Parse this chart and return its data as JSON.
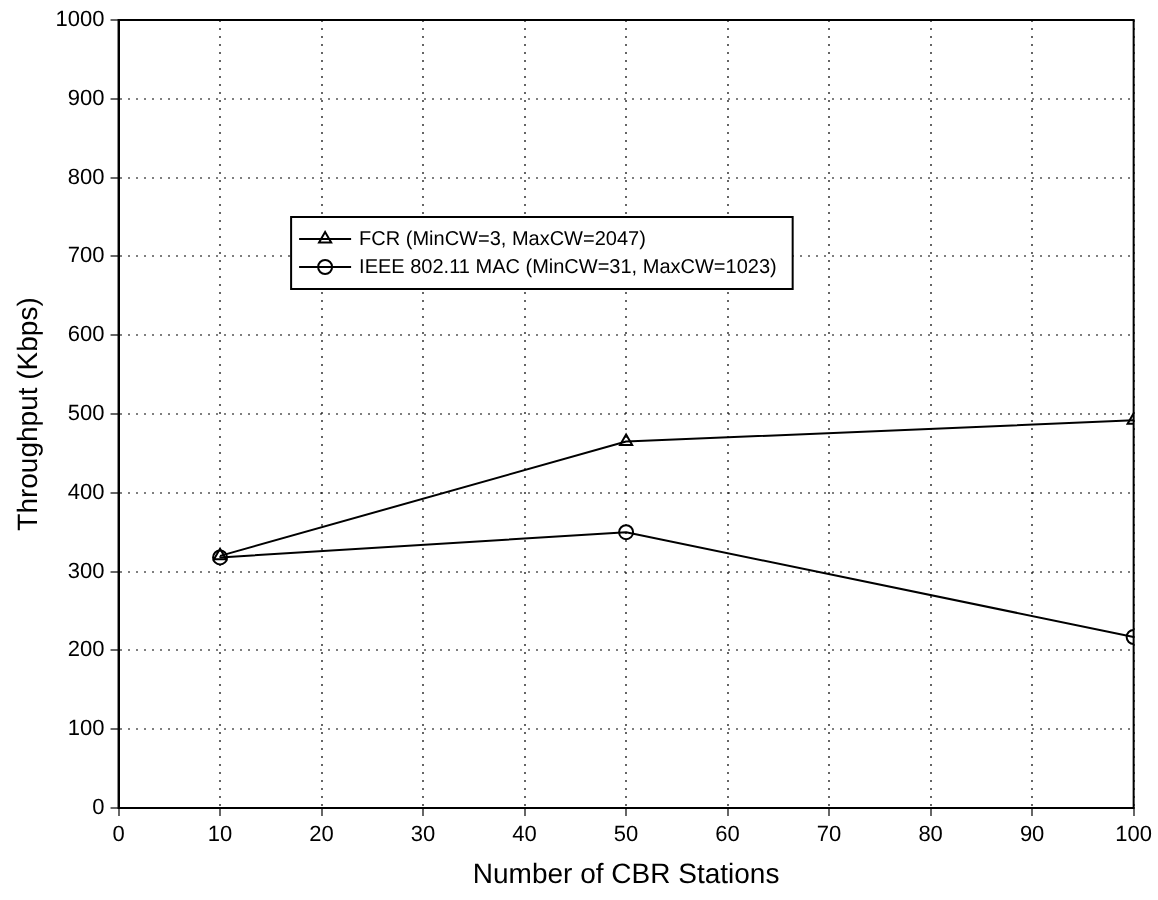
{
  "chart_data": {
    "type": "line",
    "xlabel": "Number of CBR Stations",
    "ylabel": "Throughput (Kbps)",
    "x": [
      10,
      50,
      100
    ],
    "series": [
      {
        "name": "FCR (MinCW=3, MaxCW=2047)",
        "color": "#000000",
        "marker": "triangle",
        "values": [
          320,
          465,
          492
        ]
      },
      {
        "name": "IEEE 802.11 MAC (MinCW=31, MaxCW=1023)",
        "color": "#000000",
        "marker": "circle",
        "values": [
          318,
          350,
          217
        ]
      }
    ],
    "xlim": [
      0,
      100
    ],
    "xticks": [
      0,
      10,
      20,
      30,
      40,
      50,
      60,
      70,
      80,
      90,
      100
    ],
    "ylim": [
      0,
      1000
    ],
    "yticks": [
      0,
      100,
      200,
      300,
      400,
      500,
      600,
      700,
      800,
      900,
      1000
    ],
    "grid": true,
    "legend": "top left",
    "line_style": "solid"
  }
}
